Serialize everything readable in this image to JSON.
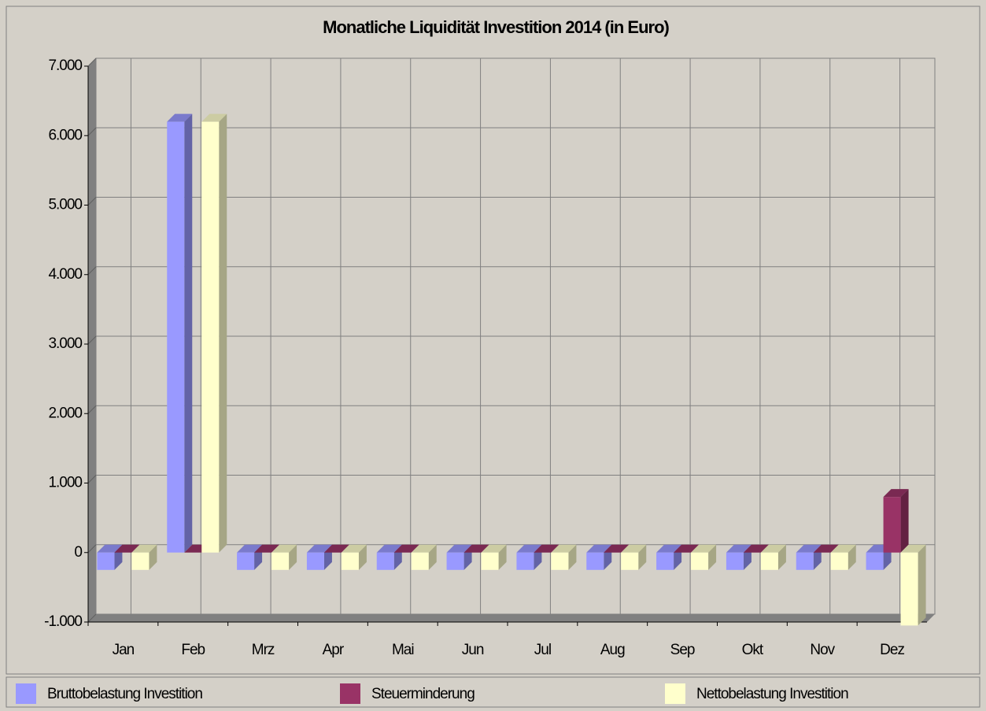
{
  "chart_data": {
    "type": "bar3d",
    "title": "Monatliche Liquidität Investition 2014 (in Euro)",
    "categories": [
      "Jan",
      "Feb",
      "Mrz",
      "Apr",
      "Mai",
      "Jun",
      "Jul",
      "Aug",
      "Sep",
      "Okt",
      "Nov",
      "Dez"
    ],
    "series": [
      {
        "name": "Bruttobelastung Investition",
        "color": "#9999ff",
        "values": [
          -250,
          6200,
          -250,
          -250,
          -250,
          -250,
          -250,
          -250,
          -250,
          -250,
          -250,
          -250
        ]
      },
      {
        "name": "Steuerminderung",
        "color": "#993366",
        "values": [
          0,
          0,
          0,
          0,
          0,
          0,
          0,
          0,
          0,
          0,
          0,
          800
        ]
      },
      {
        "name": "Nettobelastung Investition",
        "color": "#ffffcc",
        "values": [
          -250,
          6200,
          -250,
          -250,
          -250,
          -250,
          -250,
          -250,
          -250,
          -250,
          -250,
          -1050
        ]
      }
    ],
    "ylim": [
      -1000,
      7000
    ],
    "yticks": [
      {
        "value": -1000,
        "label": "-1.000"
      },
      0,
      {
        "value": 1000,
        "label": "1.000"
      },
      {
        "value": 2000,
        "label": "2.000"
      },
      {
        "value": 3000,
        "label": "3.000"
      },
      {
        "value": 4000,
        "label": "4.000"
      },
      {
        "value": 5000,
        "label": "5.000"
      },
      {
        "value": 6000,
        "label": "6.000"
      },
      {
        "value": 7000,
        "label": "7.000"
      }
    ],
    "grid": true,
    "legend": "bottom"
  }
}
